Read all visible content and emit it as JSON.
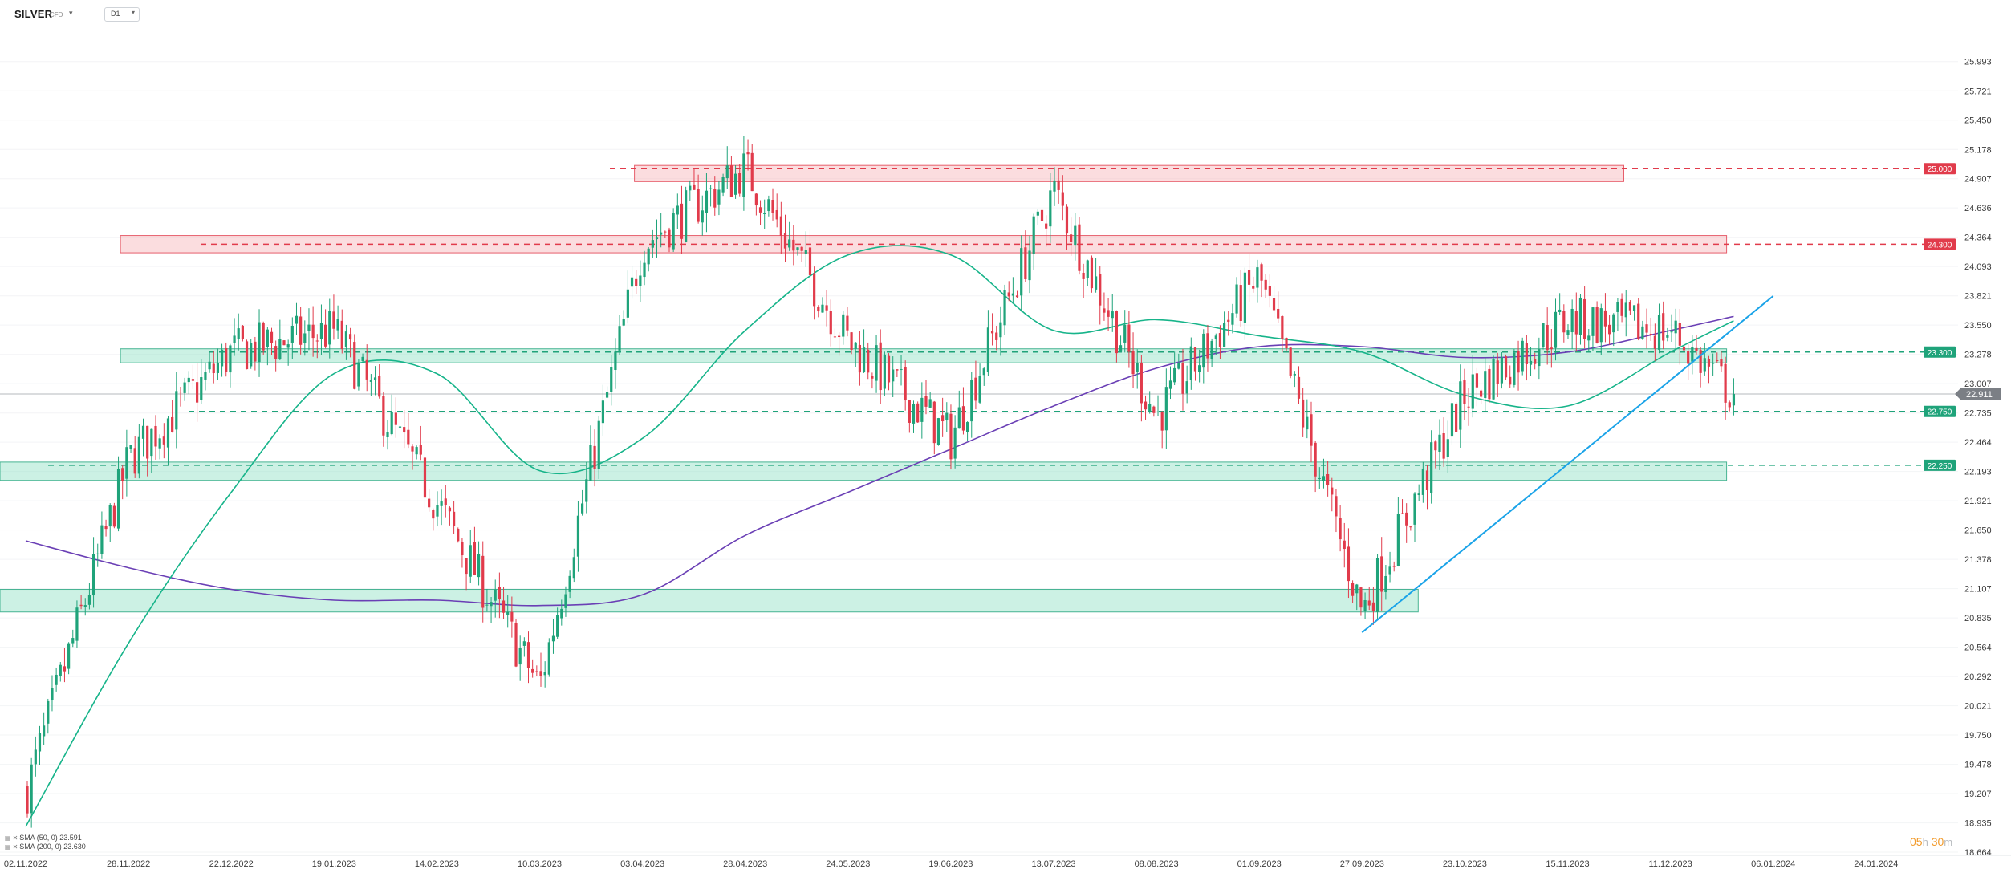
{
  "header": {
    "symbol": "SILVER",
    "symbol_type": "CFD",
    "timeframe": "D1"
  },
  "legend": [
    {
      "text": "SMA (50, 0) 23.591"
    },
    {
      "text": "SMA (200, 0) 23.630"
    }
  ],
  "countdown": {
    "hours": "05",
    "hours_unit": "h",
    "minutes": "30",
    "minutes_unit": "m"
  },
  "colors": {
    "up": "#1fa37a",
    "down": "#e13b4b",
    "sma50": "#17b48a",
    "sma200": "#6a3fb5",
    "trendline": "#1aa3e8",
    "resistance_zone": "#f6b3b8",
    "support_zone": "#8ee0c3",
    "current_price": "#7b7f85"
  },
  "chart_data": {
    "type": "candlestick",
    "y_axis": {
      "range": [
        18.664,
        26.162
      ],
      "ticks": [
        "25.993",
        "25.721",
        "25.450",
        "25.178",
        "24.907",
        "24.636",
        "24.364",
        "24.093",
        "23.821",
        "23.550",
        "23.278",
        "23.007",
        "22.735",
        "22.464",
        "22.193",
        "21.921",
        "21.650",
        "21.378",
        "21.107",
        "20.835",
        "20.564",
        "20.292",
        "20.021",
        "19.750",
        "19.478",
        "19.207",
        "18.935",
        "18.664"
      ]
    },
    "x_axis": {
      "labels": [
        "02.11.2022",
        "28.11.2022",
        "22.12.2022",
        "19.01.2023",
        "14.02.2023",
        "10.03.2023",
        "03.04.2023",
        "28.04.2023",
        "24.05.2023",
        "19.06.2023",
        "13.07.2023",
        "08.08.2023",
        "01.09.2023",
        "27.09.2023",
        "23.10.2023",
        "15.11.2023",
        "11.12.2023",
        "06.01.2024",
        "24.01.2024"
      ]
    },
    "current_price": "22.911",
    "horizontal_levels": [
      {
        "label": "25.000",
        "value": 25.0,
        "kind": "resistance"
      },
      {
        "label": "24.300",
        "value": 24.3,
        "kind": "resistance"
      },
      {
        "label": "23.300",
        "value": 23.3,
        "kind": "support"
      },
      {
        "label": "22.750",
        "value": 22.75,
        "kind": "support"
      },
      {
        "label": "22.250",
        "value": 22.25,
        "kind": "support"
      }
    ],
    "zones": [
      {
        "kind": "resistance",
        "low": 24.88,
        "high": 25.03,
        "from": "03.04.2023",
        "to": "15.11.2023"
      },
      {
        "kind": "resistance",
        "low": 24.22,
        "high": 24.38,
        "from": "28.11.2022",
        "to": "11.12.2023"
      },
      {
        "kind": "support",
        "low": 23.2,
        "high": 23.33,
        "from": "28.11.2022",
        "to": "11.12.2023"
      },
      {
        "kind": "support",
        "low": 22.11,
        "high": 22.28,
        "from": "02.11.2022",
        "to": "11.12.2023"
      },
      {
        "kind": "support",
        "low": 20.89,
        "high": 21.1,
        "from": "02.11.2022",
        "to": "27.09.2023"
      }
    ],
    "trendline": {
      "from": {
        "date": "27.09.2023",
        "value": 20.7
      },
      "to": {
        "date": "06.01.2024",
        "value": 23.82
      }
    },
    "price_path": [
      [
        "02.11.2022",
        19.2
      ],
      [
        "28.11.2022",
        22.3
      ],
      [
        "22.12.2022",
        23.3
      ],
      [
        "19.01.2023",
        23.5
      ],
      [
        "14.02.2023",
        21.9
      ],
      [
        "10.03.2023",
        20.2
      ],
      [
        "03.04.2023",
        24.3
      ],
      [
        "28.04.2023",
        25.0
      ],
      [
        "24.05.2023",
        23.4
      ],
      [
        "19.06.2023",
        22.5
      ],
      [
        "13.07.2023",
        24.8
      ],
      [
        "08.08.2023",
        22.7
      ],
      [
        "01.09.2023",
        24.0
      ],
      [
        "27.09.2023",
        20.9
      ],
      [
        "23.10.2023",
        22.9
      ],
      [
        "15.11.2023",
        23.6
      ],
      [
        "11.12.2023",
        23.5
      ],
      [
        "27.12.2023",
        22.91
      ]
    ],
    "sma50_path": [
      [
        "02.11.2022",
        18.9
      ],
      [
        "28.11.2022",
        20.6
      ],
      [
        "22.12.2022",
        22.0
      ],
      [
        "19.01.2023",
        23.1
      ],
      [
        "14.02.2023",
        23.1
      ],
      [
        "10.03.2023",
        22.2
      ],
      [
        "03.04.2023",
        22.5
      ],
      [
        "28.04.2023",
        23.5
      ],
      [
        "24.05.2023",
        24.2
      ],
      [
        "19.06.2023",
        24.2
      ],
      [
        "13.07.2023",
        23.5
      ],
      [
        "08.08.2023",
        23.6
      ],
      [
        "01.09.2023",
        23.45
      ],
      [
        "27.09.2023",
        23.3
      ],
      [
        "23.10.2023",
        22.9
      ],
      [
        "15.11.2023",
        22.8
      ],
      [
        "11.12.2023",
        23.3
      ],
      [
        "27.12.2023",
        23.59
      ]
    ],
    "sma200_path": [
      [
        "02.11.2022",
        21.55
      ],
      [
        "28.11.2022",
        21.3
      ],
      [
        "22.12.2022",
        21.1
      ],
      [
        "19.01.2023",
        21.0
      ],
      [
        "14.02.2023",
        21.0
      ],
      [
        "10.03.2023",
        20.95
      ],
      [
        "03.04.2023",
        21.05
      ],
      [
        "28.04.2023",
        21.6
      ],
      [
        "24.05.2023",
        22.0
      ],
      [
        "19.06.2023",
        22.4
      ],
      [
        "13.07.2023",
        22.8
      ],
      [
        "08.08.2023",
        23.15
      ],
      [
        "01.09.2023",
        23.35
      ],
      [
        "27.09.2023",
        23.35
      ],
      [
        "23.10.2023",
        23.25
      ],
      [
        "15.11.2023",
        23.3
      ],
      [
        "11.12.2023",
        23.5
      ],
      [
        "27.12.2023",
        23.63
      ]
    ]
  }
}
